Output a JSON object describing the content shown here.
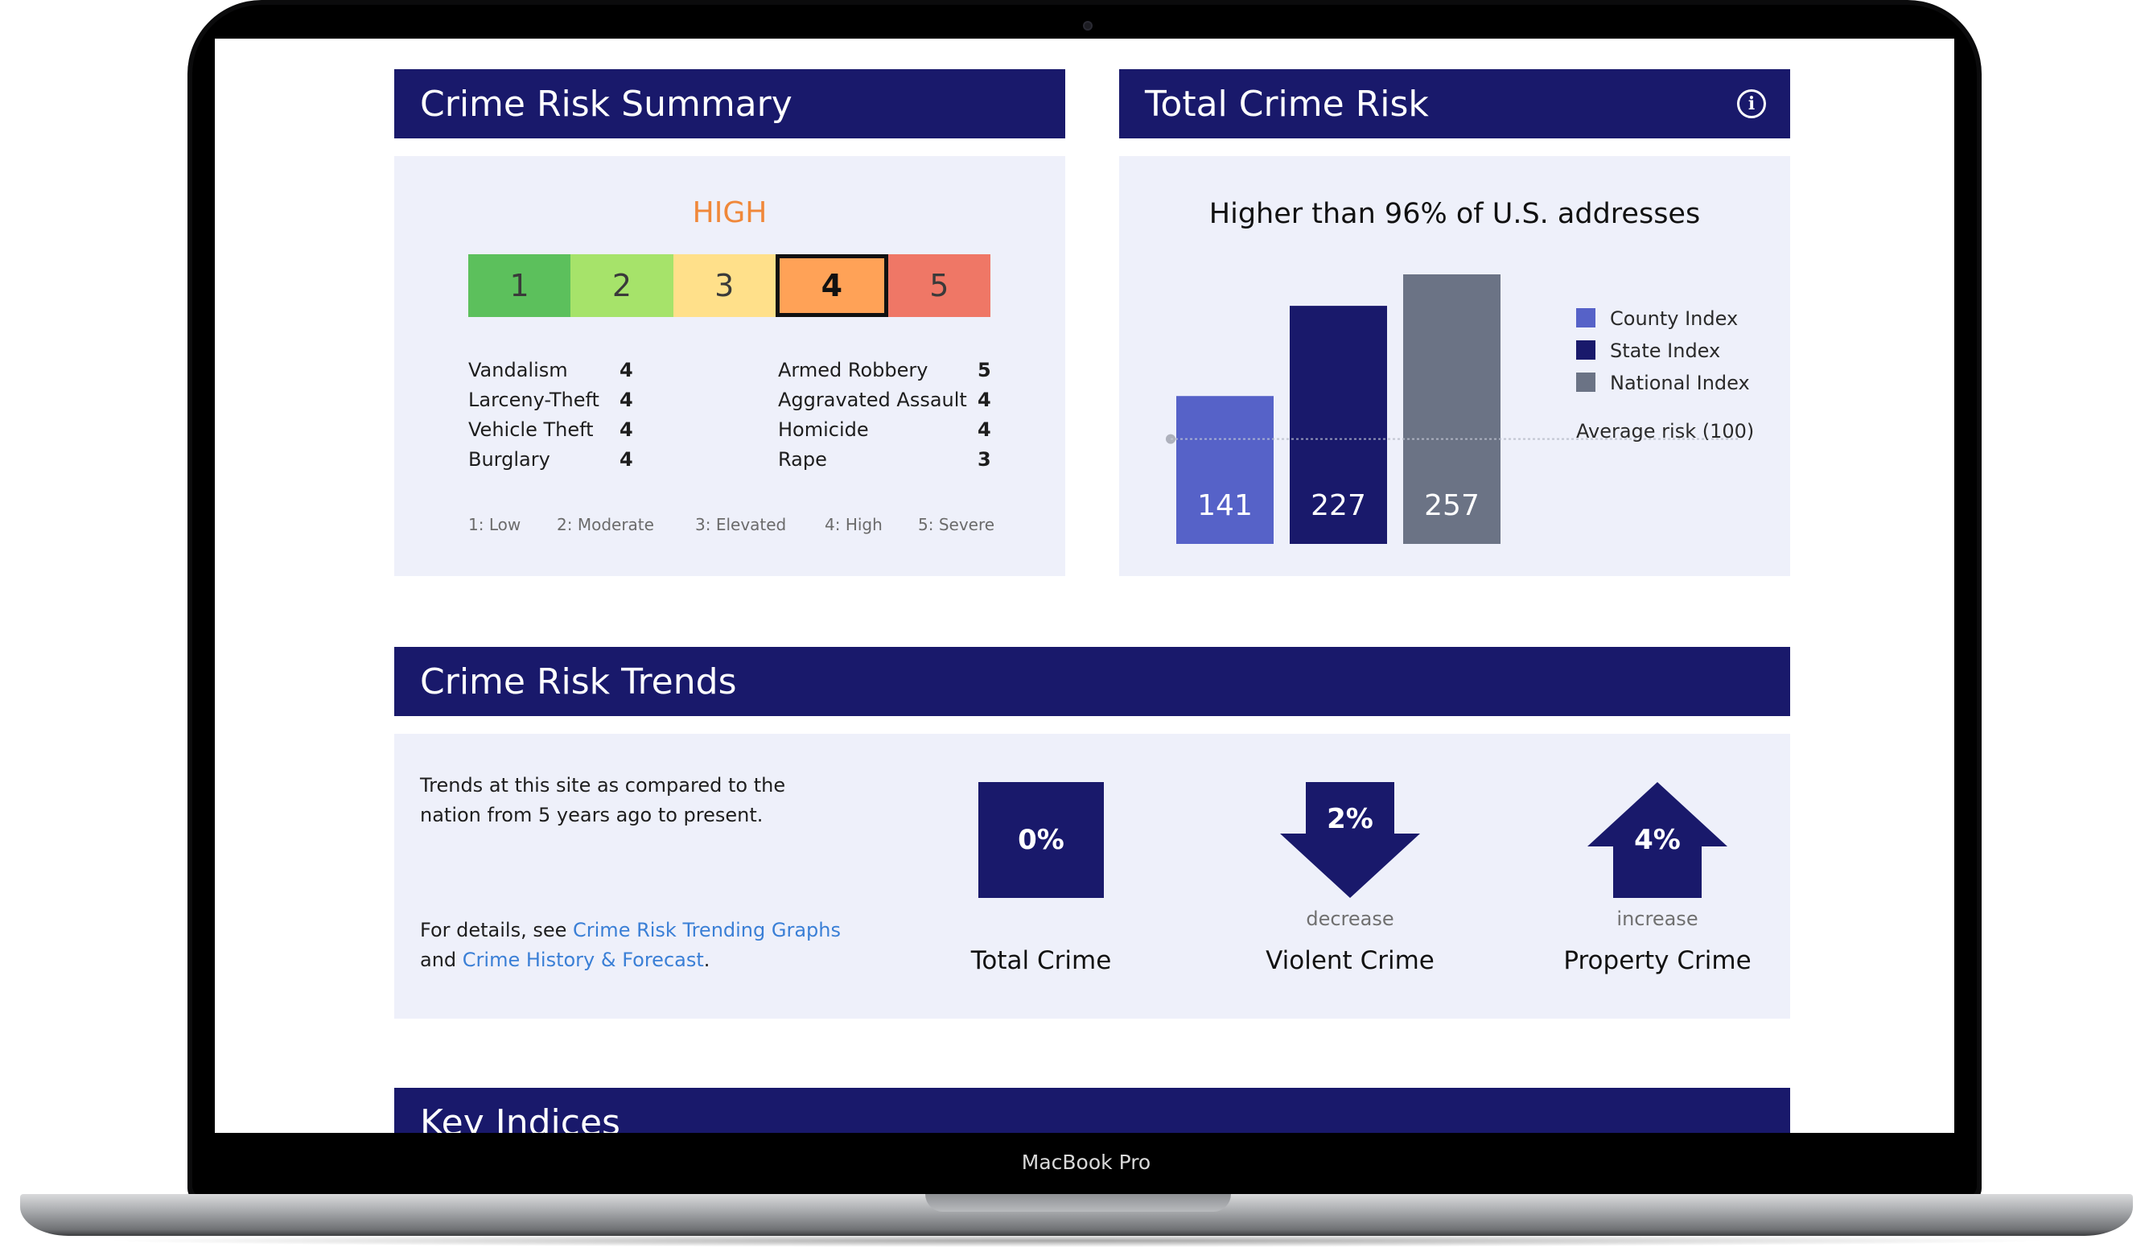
{
  "device": {
    "label": "MacBook Pro"
  },
  "summary": {
    "title": "Crime Risk Summary",
    "level": "HIGH",
    "scale": [
      {
        "label": "1",
        "color": "#5cc05c"
      },
      {
        "label": "2",
        "color": "#a6e36a"
      },
      {
        "label": "3",
        "color": "#ffe08a"
      },
      {
        "label": "4",
        "color": "#ffa257"
      },
      {
        "label": "5",
        "color": "#ef7766"
      }
    ],
    "active_level": 4,
    "crimes_left": [
      {
        "name": "Vandalism",
        "value": "4"
      },
      {
        "name": "Larceny-Theft",
        "value": "4"
      },
      {
        "name": "Vehicle Theft",
        "value": "4"
      },
      {
        "name": "Burglary",
        "value": "4"
      }
    ],
    "crimes_right": [
      {
        "name": "Armed Robbery",
        "value": "5"
      },
      {
        "name": "Aggravated Assault",
        "value": "4"
      },
      {
        "name": "Homicide",
        "value": "4"
      },
      {
        "name": "Rape",
        "value": "3"
      }
    ],
    "legend": [
      "1: Low",
      "2: Moderate",
      "3: Elevated",
      "4: High",
      "5: Severe"
    ]
  },
  "total_risk": {
    "title": "Total Crime Risk",
    "info_icon": "info-icon"
  },
  "chart_data": {
    "type": "bar",
    "title": "Higher than 96% of U.S. addresses",
    "categories": [
      "County Index",
      "State Index",
      "National Index"
    ],
    "values": [
      141,
      227,
      257
    ],
    "colors": [
      "#5662c8",
      "#19196b",
      "#6b7385"
    ],
    "reference_line": {
      "value": 100,
      "label": "Average risk (100)"
    },
    "legend": [
      "County Index",
      "State Index",
      "National Index"
    ],
    "legend_position": "right",
    "xlabel": "",
    "ylabel": "",
    "grid": false
  },
  "trends": {
    "title": "Crime Risk Trends",
    "description_line1": "Trends at this site as compared to the",
    "description_line2": "nation from 5 years ago to present.",
    "details_prefix": "For details, see ",
    "link1": "Crime Risk Trending Graphs",
    "details_middle": "and ",
    "link2": "Crime History & Forecast",
    "details_suffix": ".",
    "items": [
      {
        "value": "0%",
        "direction": "none",
        "sub": "",
        "name": "Total Crime",
        "icon": "square-icon"
      },
      {
        "value": "2%",
        "direction": "down",
        "sub": "decrease",
        "name": "Violent Crime",
        "icon": "arrow-down-icon"
      },
      {
        "value": "4%",
        "direction": "up",
        "sub": "increase",
        "name": "Property Crime",
        "icon": "arrow-up-icon"
      }
    ]
  },
  "key_indices": {
    "title": "Key Indices"
  }
}
